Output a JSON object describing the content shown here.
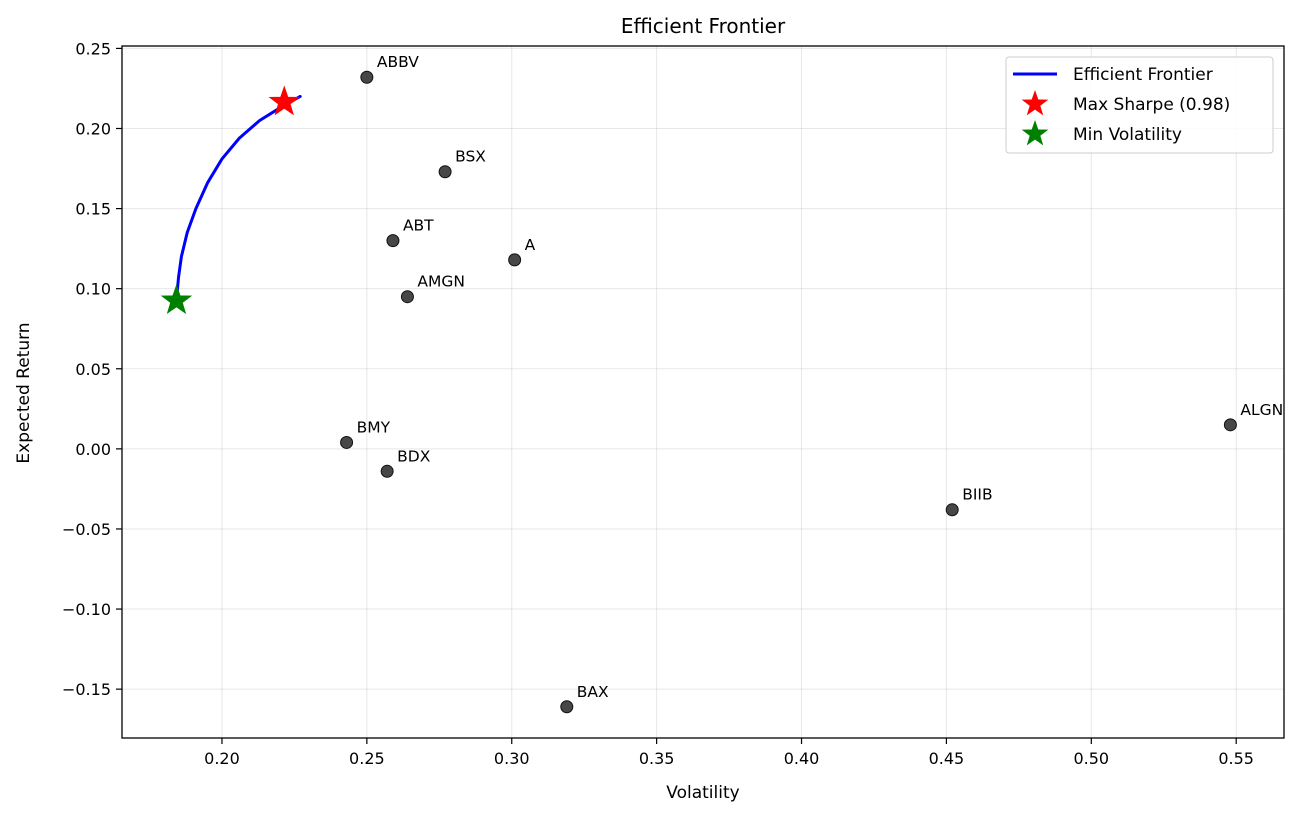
{
  "chart_data": {
    "type": "scatter",
    "title": "Efficient Frontier",
    "xlabel": "Volatility",
    "ylabel": "Expected Return",
    "xlim": [
      0.1655,
      0.5665
    ],
    "ylim": [
      -0.1805,
      0.2515
    ],
    "xticks": [
      0.2,
      0.25,
      0.3,
      0.35,
      0.4,
      0.45,
      0.5,
      0.55
    ],
    "xtick_labels": [
      "0.20",
      "0.25",
      "0.30",
      "0.35",
      "0.40",
      "0.45",
      "0.50",
      "0.55"
    ],
    "yticks": [
      -0.15,
      -0.1,
      -0.05,
      0.0,
      0.05,
      0.1,
      0.15,
      0.2,
      0.25
    ],
    "ytick_labels": [
      "−0.15",
      "−0.10",
      "−0.05",
      "0.00",
      "0.05",
      "0.10",
      "0.15",
      "0.20",
      "0.25"
    ],
    "grid": true,
    "legend_position": "top-right",
    "assets": [
      {
        "label": "ABBV",
        "x": 0.25,
        "y": 0.232
      },
      {
        "label": "BSX",
        "x": 0.277,
        "y": 0.173
      },
      {
        "label": "ABT",
        "x": 0.259,
        "y": 0.13
      },
      {
        "label": "A",
        "x": 0.301,
        "y": 0.118
      },
      {
        "label": "AMGN",
        "x": 0.264,
        "y": 0.095
      },
      {
        "label": "BMY",
        "x": 0.243,
        "y": 0.004
      },
      {
        "label": "BDX",
        "x": 0.257,
        "y": -0.014
      },
      {
        "label": "ALGN",
        "x": 0.548,
        "y": 0.015
      },
      {
        "label": "BIIB",
        "x": 0.452,
        "y": -0.038
      },
      {
        "label": "BAX",
        "x": 0.319,
        "y": -0.161
      }
    ],
    "frontier": {
      "name": "Efficient Frontier",
      "color": "#0000ff",
      "x": [
        0.1845,
        0.185,
        0.186,
        0.188,
        0.191,
        0.195,
        0.2,
        0.206,
        0.213,
        0.221,
        0.227
      ],
      "y": [
        0.097,
        0.107,
        0.12,
        0.135,
        0.15,
        0.166,
        0.181,
        0.194,
        0.205,
        0.214,
        0.22
      ]
    },
    "max_sharpe": {
      "name": "Max Sharpe (0.98)",
      "x": 0.2215,
      "y": 0.2165,
      "color": "#ff0000"
    },
    "min_volatility": {
      "name": "Min Volatility",
      "x": 0.1843,
      "y": 0.0925,
      "color": "#008000"
    },
    "point_color": "#333333"
  }
}
